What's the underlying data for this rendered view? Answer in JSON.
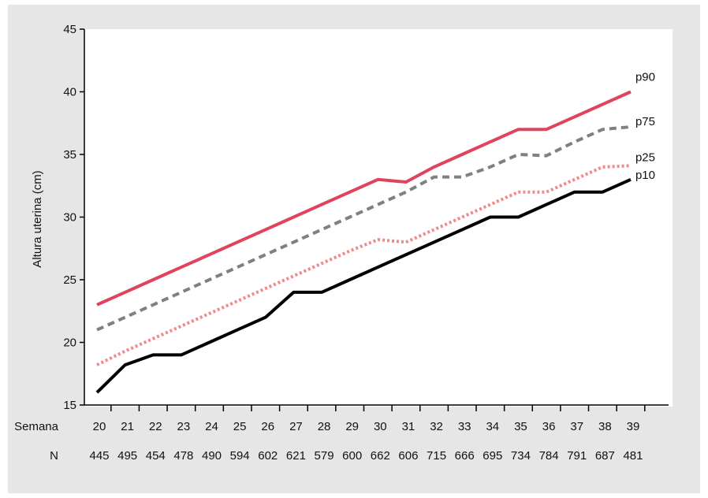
{
  "chart_data": {
    "type": "line",
    "ylabel": "Altura uterina (cm)",
    "ylim": [
      15,
      45
    ],
    "yticks": [
      15,
      20,
      25,
      30,
      35,
      40,
      45
    ],
    "x_row_label": "Semana",
    "n_row_label": "N",
    "x": [
      20,
      21,
      22,
      23,
      24,
      25,
      26,
      27,
      28,
      29,
      30,
      31,
      32,
      33,
      34,
      35,
      36,
      37,
      38,
      39
    ],
    "n": [
      445,
      495,
      454,
      478,
      490,
      594,
      602,
      621,
      579,
      600,
      662,
      606,
      715,
      666,
      695,
      734,
      784,
      791,
      687,
      481
    ],
    "grid": false,
    "series": [
      {
        "name": "p90",
        "color": "#e0435e",
        "dash": "solid",
        "values": [
          23,
          24,
          25,
          26,
          27,
          28,
          29,
          30,
          31,
          32,
          33,
          32.8,
          34,
          35,
          36,
          37,
          37,
          38,
          39,
          40
        ]
      },
      {
        "name": "p75",
        "color": "#808080",
        "dash": "dashed",
        "values": [
          21,
          22,
          23,
          24,
          25,
          26,
          27,
          28,
          29,
          30,
          31,
          32,
          33.2,
          33.2,
          34,
          35,
          34.9,
          36,
          37,
          37.2
        ]
      },
      {
        "name": "p25",
        "color": "#f08a8a",
        "dash": "dotted",
        "values": [
          18.2,
          19.3,
          20.3,
          21.3,
          22.3,
          23.3,
          24.3,
          25.3,
          26.3,
          27.3,
          28.2,
          28,
          29,
          30,
          31,
          32,
          32,
          33,
          34,
          34.1
        ]
      },
      {
        "name": "p10",
        "color": "#000000",
        "dash": "solid",
        "values": [
          16,
          18.2,
          19,
          19,
          20,
          21,
          22,
          24,
          24,
          25,
          26,
          27,
          28,
          29,
          30,
          30,
          31,
          32,
          32,
          33
        ]
      }
    ]
  }
}
